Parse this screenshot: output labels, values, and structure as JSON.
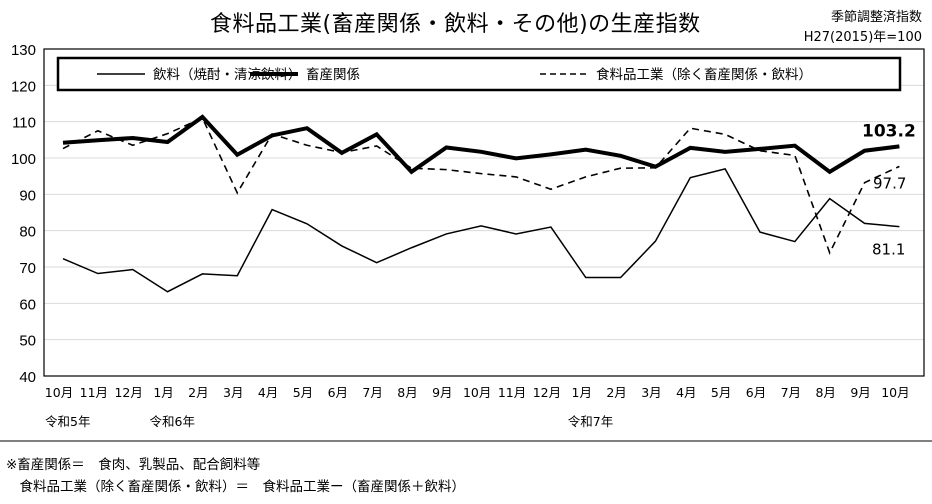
{
  "chart_data": {
    "type": "line",
    "title": "食料品工業(畜産関係・飲料・その他)の生産指数",
    "notes": [
      "季節調整済指数",
      "H27(2015)年=100"
    ],
    "ylim": [
      40,
      130
    ],
    "yticks": [
      40,
      50,
      60,
      70,
      80,
      90,
      100,
      110,
      120,
      130
    ],
    "grid": true,
    "legend_position": "top",
    "categories": [
      "10月",
      "11月",
      "12月",
      "1月",
      "2月",
      "3月",
      "4月",
      "5月",
      "6月",
      "7月",
      "8月",
      "9月",
      "10月",
      "11月",
      "12月",
      "1月",
      "2月",
      "3月",
      "4月",
      "5月",
      "6月",
      "7月",
      "8月",
      "9月",
      "10月"
    ],
    "era_labels": [
      {
        "index": 0,
        "label": "令和5年"
      },
      {
        "index": 3,
        "label": "令和6年"
      },
      {
        "index": 15,
        "label": "令和7年"
      }
    ],
    "series": [
      {
        "name": "飲料（焼酎・清涼飲料）",
        "style": "thin",
        "color": "#000000",
        "values": [
          72.3,
          68.2,
          69.3,
          63.2,
          68.1,
          67.6,
          85.8,
          81.9,
          75.8,
          71.2,
          75.3,
          79.1,
          81.3,
          79.1,
          81.0,
          67.1,
          67.1,
          77.1,
          94.6,
          97.0,
          79.6,
          77.0,
          88.8,
          82.0,
          81.1
        ],
        "end_label": "81.1"
      },
      {
        "name": "畜産関係",
        "style": "thick",
        "color": "#000000",
        "values": [
          104.2,
          104.9,
          105.5,
          104.4,
          111.3,
          100.9,
          106.2,
          108.2,
          101.4,
          106.5,
          96.2,
          102.9,
          101.7,
          99.9,
          101.0,
          102.3,
          100.6,
          97.6,
          102.8,
          101.7,
          102.5,
          103.4,
          96.2,
          102.0,
          103.2
        ],
        "end_label": "103.2"
      },
      {
        "name": "食料品工業（除く畜産関係・飲料）",
        "style": "dashed",
        "color": "#000000",
        "values": [
          102.6,
          107.5,
          103.5,
          106.7,
          111.0,
          90.4,
          106.6,
          103.5,
          101.5,
          103.3,
          97.2,
          96.8,
          95.7,
          94.8,
          91.4,
          94.8,
          97.2,
          97.3,
          108.2,
          106.5,
          102.0,
          100.7,
          73.9,
          93.2,
          97.7
        ],
        "end_label": "97.7"
      }
    ]
  },
  "footnotes": [
    "※畜産関係＝　食肉、乳製品、配合飼料等",
    "　食料品工業（除く畜産関係・飲料）＝　食料品工業ー（畜産関係＋飲料）"
  ]
}
